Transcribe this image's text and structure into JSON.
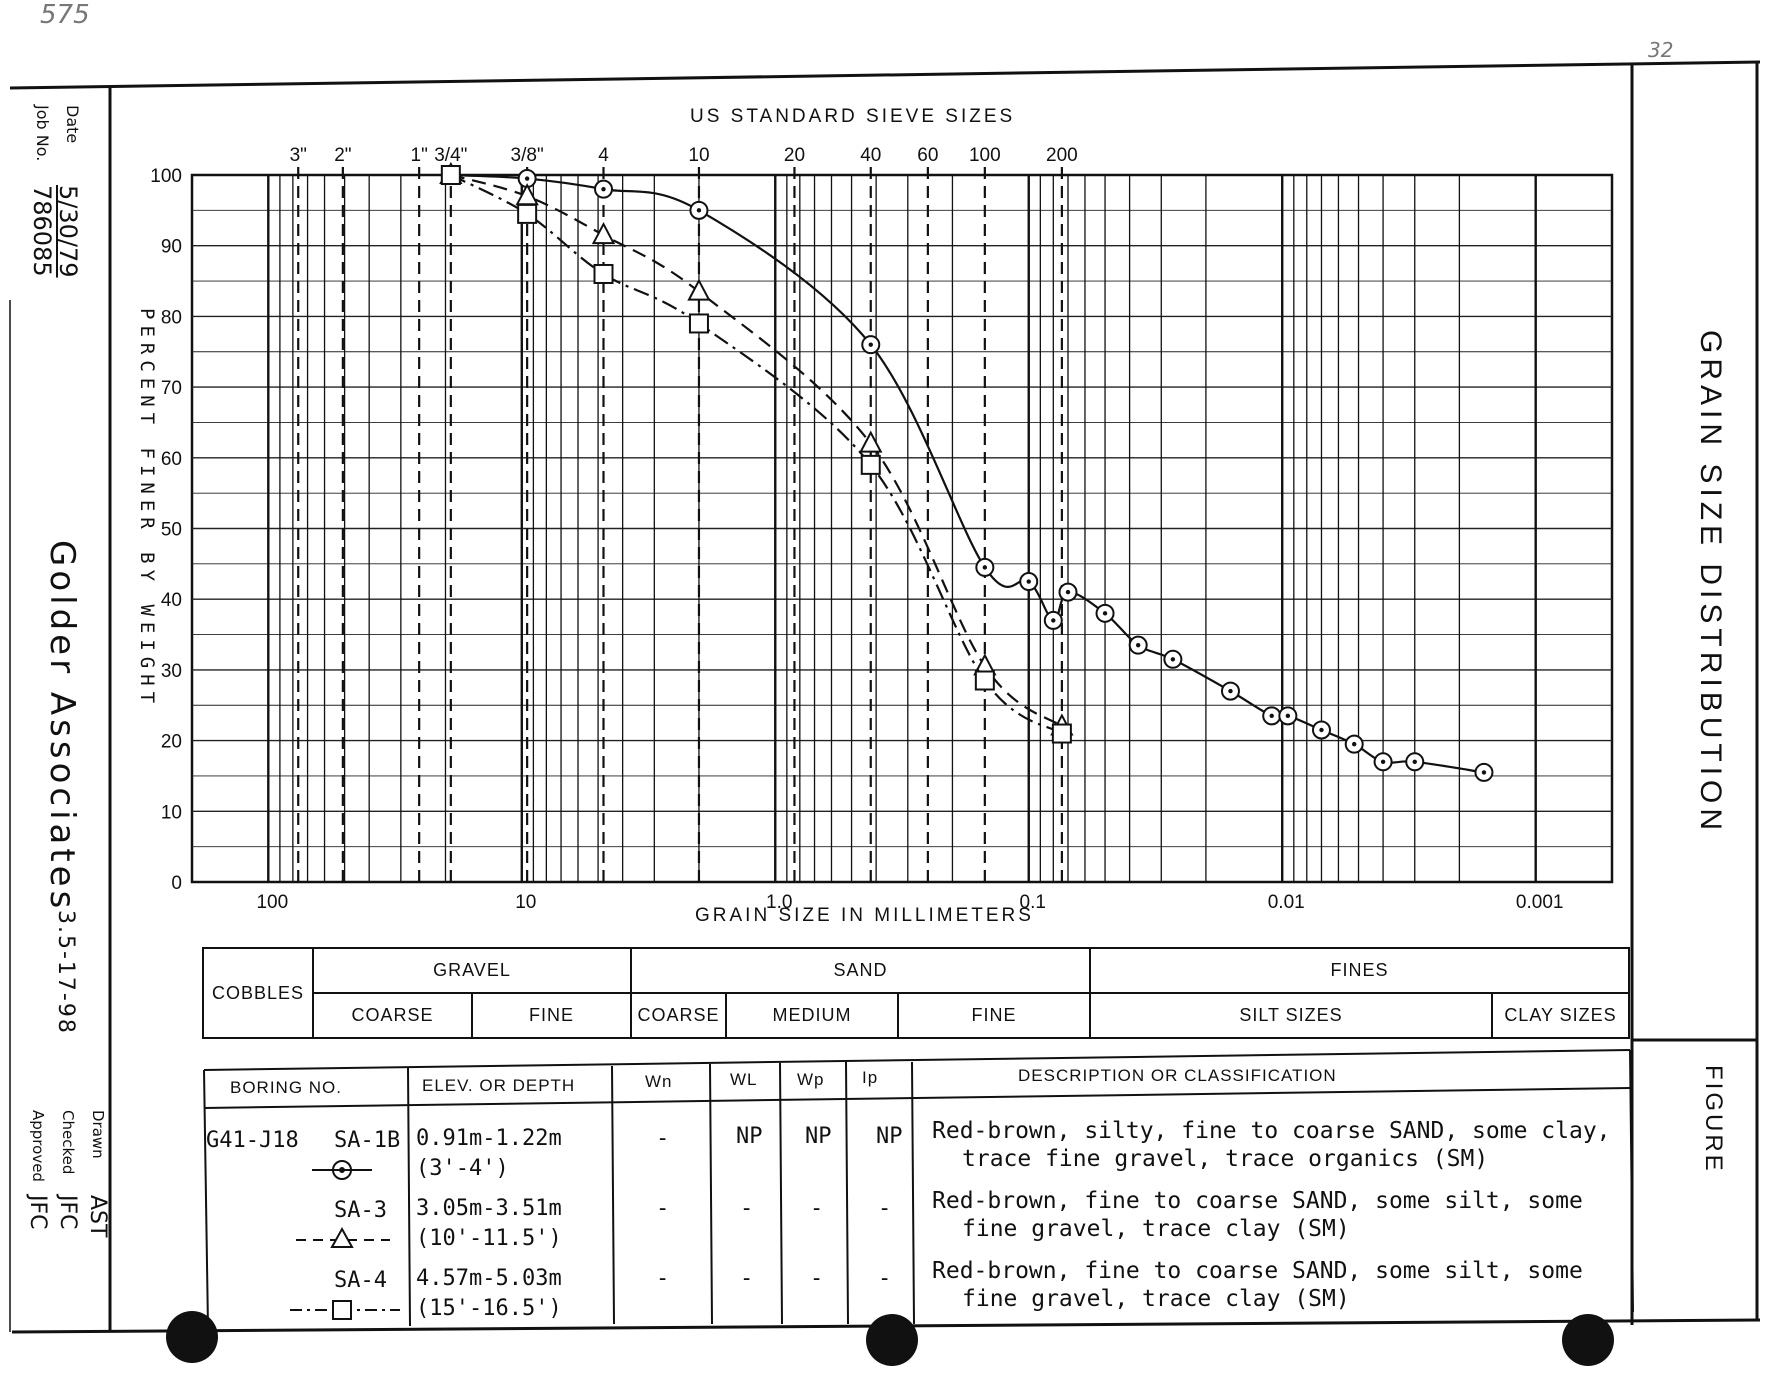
{
  "corner_marks": {
    "top_left": "575",
    "top_right": "32"
  },
  "sidebar": {
    "date_label": "Date",
    "date_value": "5/30/79",
    "job_label": "Job No.",
    "job_value": "786085",
    "company": "Golder Associates",
    "code": "3.5-17-98",
    "drawn_label": "Drawn",
    "drawn_value": "AST",
    "checked_label": "Checked",
    "checked_value": "JFC",
    "approved_label": "Approved",
    "approved_value": "JFC"
  },
  "right_panel": {
    "title": "GRAIN SIZE DISTRIBUTION",
    "figure_label": "FIGURE"
  },
  "chart_data": {
    "type": "line",
    "title": "US STANDARD SIEVE SIZES",
    "xlabel": "GRAIN SIZE IN MILLIMETERS",
    "ylabel": "PERCENT FINER BY WEIGHT",
    "x_scale": "log",
    "x_reversed": true,
    "xlim": [
      200,
      0.0005
    ],
    "ylim": [
      0,
      100
    ],
    "grid": true,
    "x_tick_labels": [
      "100",
      "10",
      "1.0",
      "0.1",
      "0.01",
      "0.001"
    ],
    "x_tick_values": [
      100,
      10,
      1.0,
      0.1,
      0.01,
      0.001
    ],
    "y_tick_labels": [
      "0",
      "10",
      "20",
      "30",
      "40",
      "50",
      "60",
      "70",
      "80",
      "90",
      "100"
    ],
    "sieves": [
      {
        "label": "3\"",
        "size": 76.2
      },
      {
        "label": "2\"",
        "size": 50.8
      },
      {
        "label": "1\"",
        "size": 25.4
      },
      {
        "label": "3/4\"",
        "size": 19.05
      },
      {
        "label": "3/8\"",
        "size": 9.525
      },
      {
        "label": "4",
        "size": 4.76
      },
      {
        "label": "10",
        "size": 2.0
      },
      {
        "label": "20",
        "size": 0.84
      },
      {
        "label": "40",
        "size": 0.42
      },
      {
        "label": "60",
        "size": 0.25
      },
      {
        "label": "100",
        "size": 0.149
      },
      {
        "label": "200",
        "size": 0.074
      }
    ],
    "series": [
      {
        "name": "SA-1B",
        "marker": "circle",
        "line": "solid",
        "x": [
          19.05,
          9.525,
          4.76,
          2.0,
          0.42,
          0.149,
          0.1,
          0.08,
          0.07,
          0.05,
          0.037,
          0.027,
          0.016,
          0.011,
          0.0095,
          0.007,
          0.0052,
          0.004,
          0.003,
          0.0016
        ],
        "y": [
          100,
          99.5,
          98,
          95,
          76,
          44.5,
          42.5,
          37,
          41,
          38,
          33.5,
          31.5,
          27,
          23.5,
          23.5,
          21.5,
          19.5,
          17,
          17,
          15.5
        ]
      },
      {
        "name": "SA-3",
        "marker": "triangle",
        "line": "dashed",
        "x": [
          19.05,
          9.525,
          4.76,
          2.0,
          0.42,
          0.149,
          0.074
        ],
        "y": [
          100,
          97,
          91.5,
          83.5,
          62,
          30.5,
          22
        ]
      },
      {
        "name": "SA-4",
        "marker": "square",
        "line": "dash-dot",
        "x": [
          19.05,
          9.525,
          4.76,
          2.0,
          0.42,
          0.149,
          0.074
        ],
        "y": [
          100,
          94.5,
          86,
          79,
          59,
          28.5,
          21
        ]
      }
    ]
  },
  "classification": {
    "cobbles": "COBBLES",
    "gravel": "GRAVEL",
    "gravel_coarse": "COARSE",
    "gravel_fine": "FINE",
    "sand": "SAND",
    "sand_coarse": "COARSE",
    "sand_medium": "MEDIUM",
    "sand_fine": "FINE",
    "fines": "FINES",
    "silt": "SILT  SIZES",
    "clay": "CLAY SIZES"
  },
  "boring_table": {
    "headers": {
      "boring": "BORING NO.",
      "depth": "ELEV. OR DEPTH",
      "wn": "Wn",
      "wl": "WL",
      "wp": "Wp",
      "ip": "Ip",
      "description": "DESCRIPTION  OR  CLASSIFICATION"
    },
    "rows": [
      {
        "boring": "G41-J18",
        "sample": "SA-1B",
        "depth_m": "0.91m-1.22m",
        "depth_ft": "(3'-4')",
        "wn": "-",
        "wl": "NP",
        "wp": "NP",
        "ip": "NP",
        "desc1": "Red-brown, silty, fine to coarse SAND, some clay,",
        "desc2": "trace fine gravel, trace organics (SM)"
      },
      {
        "boring": "",
        "sample": "SA-3",
        "depth_m": "3.05m-3.51m",
        "depth_ft": "(10'-11.5')",
        "wn": "-",
        "wl": "-",
        "wp": "-",
        "ip": "-",
        "desc1": "Red-brown, fine to coarse SAND, some silt, some",
        "desc2": "fine gravel, trace clay (SM)"
      },
      {
        "boring": "",
        "sample": "SA-4",
        "depth_m": "4.57m-5.03m",
        "depth_ft": "(15'-16.5')",
        "wn": "-",
        "wl": "-",
        "wp": "-",
        "ip": "-",
        "desc1": "Red-brown, fine to coarse SAND, some silt, some",
        "desc2": "fine gravel, trace clay (SM)"
      }
    ]
  }
}
